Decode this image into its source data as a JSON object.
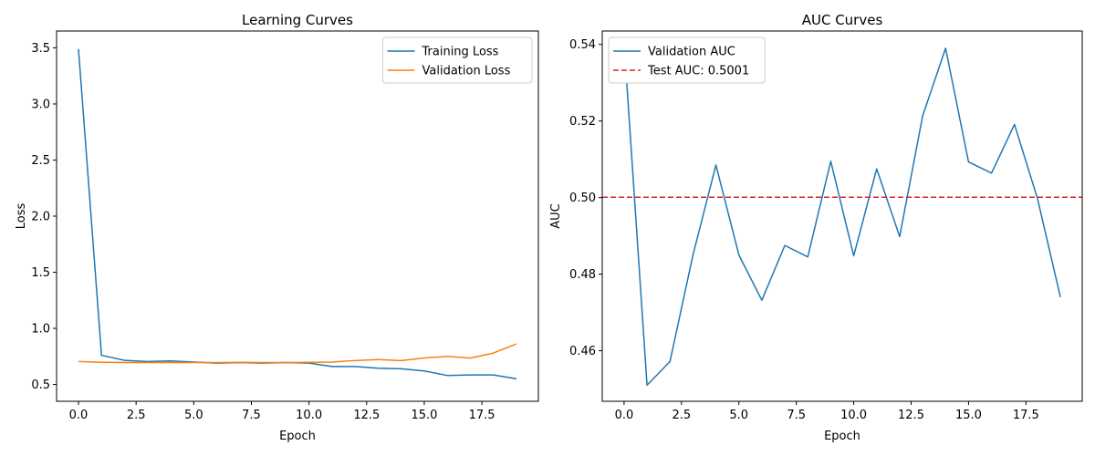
{
  "chart_data": [
    {
      "type": "line",
      "title": "Learning Curves",
      "xlabel": "Epoch",
      "ylabel": "Loss",
      "xlim": [
        -0.95,
        19.95
      ],
      "ylim": [
        0.35,
        3.65
      ],
      "xticks": [
        0,
        2.5,
        5,
        7.5,
        10,
        12.5,
        15,
        17.5
      ],
      "xtick_labels": [
        "0.0",
        "2.5",
        "5.0",
        "7.5",
        "10.0",
        "12.5",
        "15.0",
        "17.5"
      ],
      "yticks": [
        0.5,
        1.0,
        1.5,
        2.0,
        2.5,
        3.0,
        3.5
      ],
      "ytick_labels": [
        "0.5",
        "1.0",
        "1.5",
        "2.0",
        "2.5",
        "3.0",
        "3.5"
      ],
      "grid": false,
      "legend": "upper right",
      "x": [
        0,
        1,
        2,
        3,
        4,
        5,
        6,
        7,
        8,
        9,
        10,
        11,
        12,
        13,
        14,
        15,
        16,
        17,
        18,
        19
      ],
      "series": [
        {
          "name": "Training Loss",
          "color": "#1f77b4",
          "dashed": false,
          "values": [
            3.49,
            0.76,
            0.715,
            0.705,
            0.71,
            0.7,
            0.69,
            0.695,
            0.69,
            0.695,
            0.69,
            0.66,
            0.66,
            0.645,
            0.64,
            0.62,
            0.58,
            0.585,
            0.585,
            0.55
          ]
        },
        {
          "name": "Validation Loss",
          "color": "#ff7f0e",
          "dashed": false,
          "values": [
            0.705,
            0.698,
            0.695,
            0.695,
            0.695,
            0.695,
            0.695,
            0.697,
            0.695,
            0.695,
            0.697,
            0.7,
            0.713,
            0.722,
            0.713,
            0.736,
            0.75,
            0.735,
            0.78,
            0.862
          ]
        }
      ]
    },
    {
      "type": "line",
      "title": "AUC Curves",
      "xlabel": "Epoch",
      "ylabel": "AUC",
      "xlim": [
        -0.95,
        19.95
      ],
      "ylim": [
        0.4468,
        0.5435
      ],
      "xticks": [
        0,
        2.5,
        5,
        7.5,
        10,
        12.5,
        15,
        17.5
      ],
      "xtick_labels": [
        "0.0",
        "2.5",
        "5.0",
        "7.5",
        "10.0",
        "12.5",
        "15.0",
        "17.5"
      ],
      "yticks": [
        0.46,
        0.48,
        0.5,
        0.52,
        0.54
      ],
      "ytick_labels": [
        "0.46",
        "0.48",
        "0.50",
        "0.52",
        "0.54"
      ],
      "grid": false,
      "legend": "upper left",
      "x": [
        0,
        1,
        2,
        3,
        4,
        5,
        6,
        7,
        8,
        9,
        10,
        11,
        12,
        13,
        14,
        15,
        16,
        17,
        18,
        19
      ],
      "series": [
        {
          "name": "Validation AUC",
          "color": "#1f77b4",
          "dashed": false,
          "values": [
            0.5405,
            0.451,
            0.4572,
            0.485,
            0.5085,
            0.485,
            0.4732,
            0.4875,
            0.4845,
            0.5095,
            0.4848,
            0.5075,
            0.4898,
            0.5213,
            0.539,
            0.5093,
            0.5064,
            0.5191,
            0.4998,
            0.474
          ]
        },
        {
          "name": "Test AUC: 0.5001",
          "color": "#d62728",
          "dashed": true,
          "hline": 0.5001
        }
      ]
    }
  ]
}
